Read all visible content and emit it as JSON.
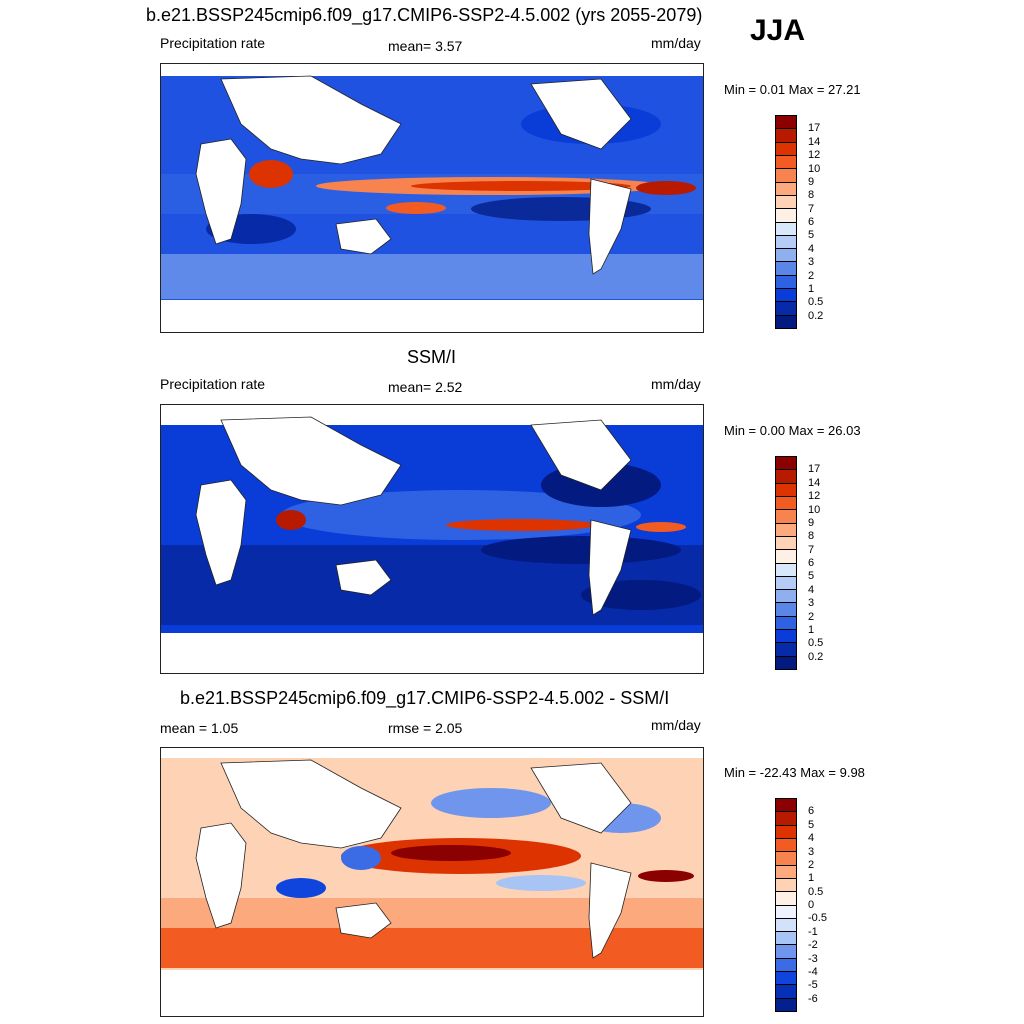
{
  "season": "JJA",
  "panels": [
    {
      "title": "b.e21.BSSP245cmip6.f09_g17.CMIP6-SSP2-4.5.002 (yrs 2055-2079)",
      "left_label": "Precipitation rate",
      "center_label": "mean=   3.57",
      "right_label": "mm/day",
      "minmax": "Min =   0.01 Max =  27.21",
      "colorbar_labels": [
        "17",
        "14",
        "12",
        "10",
        "9",
        "8",
        "7",
        "6",
        "5",
        "4",
        "3",
        "2",
        "1",
        "0.5",
        "0.2"
      ],
      "colors": [
        "#8b0000",
        "#b81a00",
        "#dd3300",
        "#f25c23",
        "#f7844e",
        "#fba97d",
        "#fdd2b5",
        "#fff0e6",
        "#d9e7fb",
        "#b5cdf6",
        "#8fb0ef",
        "#5a86e8",
        "#2f62e3",
        "#0a3cd8",
        "#062aa8",
        "#031a80"
      ]
    },
    {
      "title": "SSM/I",
      "left_label": "Precipitation rate",
      "center_label": "mean=   2.52",
      "right_label": "mm/day",
      "minmax": "Min =   0.00 Max =  26.03",
      "colorbar_labels": [
        "17",
        "14",
        "12",
        "10",
        "9",
        "8",
        "7",
        "6",
        "5",
        "4",
        "3",
        "2",
        "1",
        "0.5",
        "0.2"
      ],
      "colors": [
        "#8b0000",
        "#b81a00",
        "#dd3300",
        "#f25c23",
        "#f7844e",
        "#fba97d",
        "#fdd2b5",
        "#fff0e6",
        "#d9e7fb",
        "#b5cdf6",
        "#8fb0ef",
        "#5a86e8",
        "#2f62e3",
        "#0a3cd8",
        "#062aa8",
        "#031a80"
      ]
    },
    {
      "title": "b.e21.BSSP245cmip6.f09_g17.CMIP6-SSP2-4.5.002 - SSM/I",
      "left_label": "mean =   1.05",
      "center_label": "rmse =   2.05",
      "right_label": "mm/day",
      "minmax": "Min = -22.43 Max =   9.98",
      "colorbar_labels": [
        "6",
        "5",
        "4",
        "3",
        "2",
        "1",
        "0.5",
        "0",
        "-0.5",
        "-1",
        "-2",
        "-3",
        "-4",
        "-5",
        "-6"
      ],
      "colors": [
        "#8b0000",
        "#b81a00",
        "#dd3300",
        "#f25c23",
        "#f7844e",
        "#fba97d",
        "#fdd2b5",
        "#fff0e6",
        "#eef3fd",
        "#d3e2fb",
        "#a8c4f4",
        "#6f96ec",
        "#3b6ce5",
        "#0f45dc",
        "#0630b5",
        "#03208f"
      ]
    }
  ]
}
